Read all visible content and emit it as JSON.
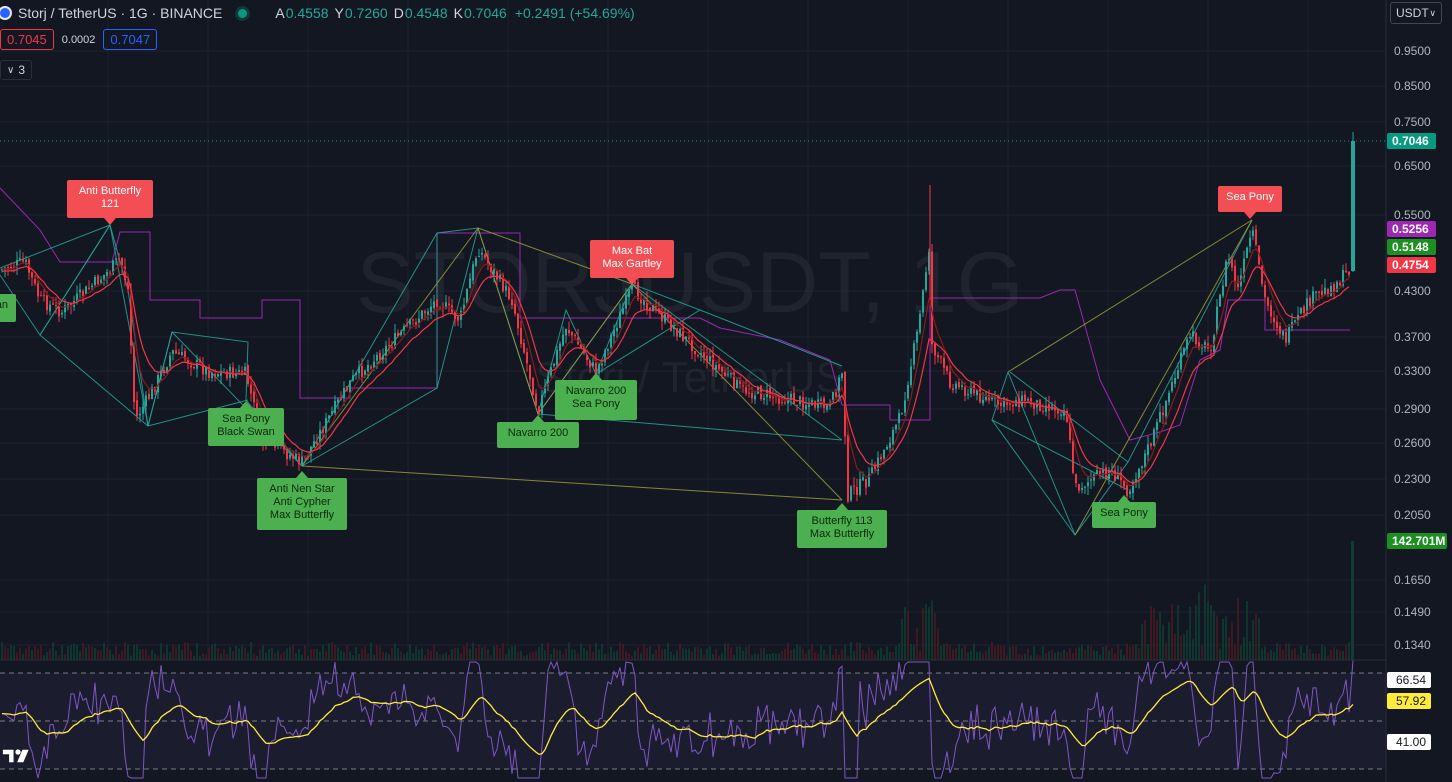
{
  "legend": {
    "title": "Storj / TetherUS · 1G · BINANCE",
    "open_label": "A",
    "open": "0.4558",
    "high_label": "Y",
    "high": "0.7260",
    "low_label": "D",
    "low": "0.4548",
    "close_label": "K",
    "close": "0.7046",
    "change": "+0.2491 (+54.69%)"
  },
  "trade": {
    "sell": "0.7045",
    "spread": "0.0002",
    "buy": "0.7047"
  },
  "indicators_toggle": "3",
  "currency": "USDT",
  "watermark": {
    "line1": "STORJUSDT, 1G",
    "line2": "Storj / TetherUS"
  },
  "price_axis": {
    "ticks": [
      "0.9500",
      "0.8500",
      "0.7500",
      "0.6500",
      "0.5500",
      "0.4300",
      "0.3700",
      "0.3300",
      "0.2900",
      "0.2600",
      "0.2300",
      "0.2050",
      "0.1650",
      "0.1490",
      "0.1340"
    ],
    "tags": [
      {
        "value": "0.7046",
        "color": "#089981"
      },
      {
        "value": "0.5256",
        "color": "#9c27b0"
      },
      {
        "value": "0.5148",
        "color": "#1b8f1f"
      },
      {
        "value": "0.4754",
        "color": "#f23645"
      },
      {
        "value": "142.701M",
        "color": "#1b8f1f"
      }
    ]
  },
  "rsi_axis": {
    "tags": [
      {
        "value": "66.54",
        "color": "#ffffff",
        "text": "#131722"
      },
      {
        "value": "57.92",
        "color": "#ffeb3b",
        "text": "#131722"
      },
      {
        "value": "41.00",
        "color": "#ffffff",
        "text": "#131722"
      }
    ]
  },
  "pattern_labels": [
    {
      "text": [
        "Anti Butterfly",
        "121"
      ],
      "color": "#f24e53",
      "dir": "down"
    },
    {
      "text": [
        "k Swan"
      ],
      "color": "#4caf50",
      "dir": "up"
    },
    {
      "text": [
        "Sea Pony",
        "Black Swan"
      ],
      "color": "#4caf50",
      "dir": "up"
    },
    {
      "text": [
        "Anti Nen Star",
        "Anti Cypher",
        "Max Butterfly"
      ],
      "color": "#4caf50",
      "dir": "up"
    },
    {
      "text": [
        "Max Bat",
        "Max Gartley"
      ],
      "color": "#f24e53",
      "dir": "down"
    },
    {
      "text": [
        "Navarro 200",
        "Sea Pony"
      ],
      "color": "#4caf50",
      "dir": "up"
    },
    {
      "text": [
        "Navarro 200"
      ],
      "color": "#4caf50",
      "dir": "up"
    },
    {
      "text": [
        "Butterfly 113",
        "Max Butterfly"
      ],
      "color": "#4caf50",
      "dir": "up"
    },
    {
      "text": [
        "Sea Pony"
      ],
      "color": "#4caf50",
      "dir": "up"
    },
    {
      "text": [
        "Sea Pony"
      ],
      "color": "#f24e53",
      "dir": "down"
    }
  ],
  "colors": {
    "up": "#26a69a",
    "down": "#f23645",
    "background": "#131722",
    "ema": "#f23645",
    "donchian": "#9c27b0",
    "rsi": "#7e57c2",
    "rsi_ma": "#ffeb3b",
    "harmonic_up": "#26a69a",
    "harmonic_yellow": "#9b9b3a"
  },
  "icons": {
    "logo": "tradingview-logo-icon",
    "live": "live-dot-icon",
    "chevron": "chevron-down-icon",
    "symbol": "storj-symbol-icon"
  }
}
